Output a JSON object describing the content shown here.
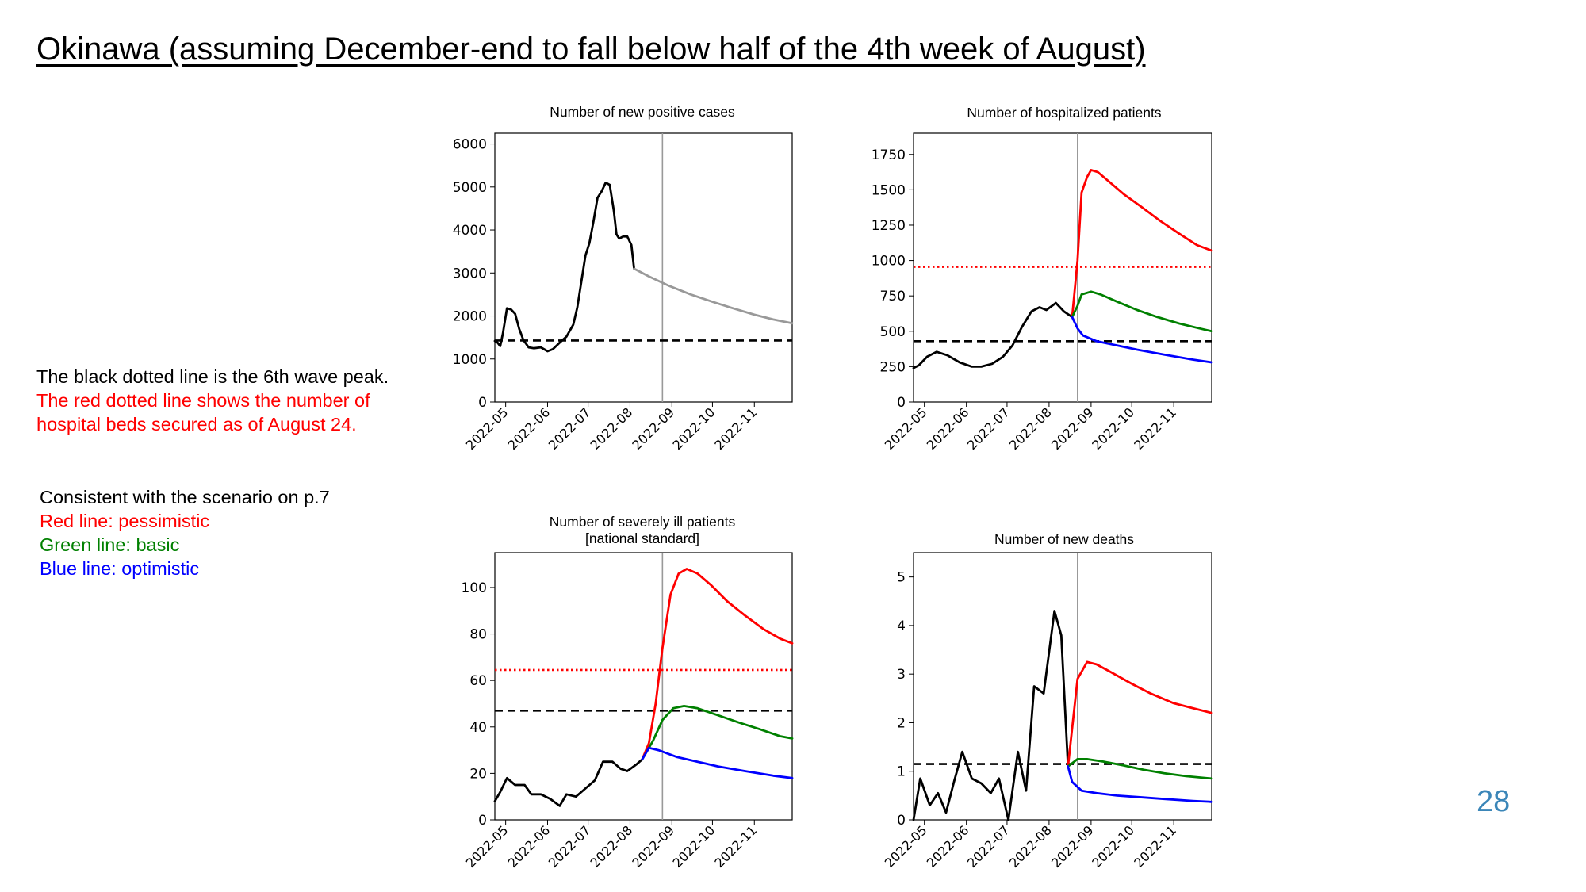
{
  "slide": {
    "title": "Okinawa (assuming December-end to fall below half of the 4th week of August)",
    "page_number": "28",
    "notes": [
      {
        "text": "The black dotted line is the 6th wave peak.",
        "color": "#000000"
      },
      {
        "text": "The red dotted line shows the number of",
        "color": "#ff0000"
      },
      {
        "text": "hospital beds secured as of August 24.",
        "color": "#ff0000"
      }
    ],
    "scenario_heading": "Consistent with the scenario on p.7",
    "legend": [
      {
        "text": "Red line: pessimistic",
        "color": "#ff0000"
      },
      {
        "text": "Green line: basic",
        "color": "#008000"
      },
      {
        "text": "Blue line: optimistic",
        "color": "#0000ff"
      }
    ]
  },
  "chart_data": [
    {
      "type": "line",
      "title": "Number of new positive cases",
      "x_ticks": [
        "2022-05",
        "2022-06",
        "2022-07",
        "2022-08",
        "2022-09",
        "2022-10",
        "2022-11"
      ],
      "xlim": [
        "2022-04-23",
        "2022-11-29"
      ],
      "ylim": [
        0,
        6250
      ],
      "yticks": [
        0,
        1000,
        2000,
        3000,
        4000,
        5000,
        6000
      ],
      "vline": "2022-08-25",
      "hlines": [
        {
          "label": "6th wave peak",
          "value": 1430,
          "color": "#000000",
          "style": "dashed"
        }
      ],
      "series": [
        {
          "color": "#000000",
          "points": [
            [
              "2022-04-23",
              1420
            ],
            [
              "2022-04-25",
              1380
            ],
            [
              "2022-04-27",
              1300
            ],
            [
              "2022-04-29",
              1600
            ],
            [
              "2022-05-02",
              2180
            ],
            [
              "2022-05-05",
              2150
            ],
            [
              "2022-05-08",
              2050
            ],
            [
              "2022-05-11",
              1700
            ],
            [
              "2022-05-14",
              1450
            ],
            [
              "2022-05-18",
              1270
            ],
            [
              "2022-05-22",
              1250
            ],
            [
              "2022-05-27",
              1270
            ],
            [
              "2022-06-01",
              1180
            ],
            [
              "2022-06-05",
              1230
            ],
            [
              "2022-06-10",
              1380
            ],
            [
              "2022-06-15",
              1520
            ],
            [
              "2022-06-20",
              1800
            ],
            [
              "2022-06-23",
              2200
            ],
            [
              "2022-06-26",
              2800
            ],
            [
              "2022-06-29",
              3400
            ],
            [
              "2022-07-02",
              3700
            ],
            [
              "2022-07-05",
              4200
            ],
            [
              "2022-07-08",
              4750
            ],
            [
              "2022-07-11",
              4900
            ],
            [
              "2022-07-14",
              5100
            ],
            [
              "2022-07-17",
              5050
            ],
            [
              "2022-07-20",
              4450
            ],
            [
              "2022-07-22",
              3900
            ],
            [
              "2022-07-24",
              3800
            ],
            [
              "2022-07-27",
              3850
            ],
            [
              "2022-07-30",
              3850
            ],
            [
              "2022-08-02",
              3650
            ],
            [
              "2022-08-04",
              3100
            ]
          ]
        },
        {
          "color": "#999999",
          "points": [
            [
              "2022-08-04",
              3100
            ],
            [
              "2022-08-15",
              2920
            ],
            [
              "2022-08-30",
              2700
            ],
            [
              "2022-09-15",
              2500
            ],
            [
              "2022-10-01",
              2330
            ],
            [
              "2022-10-15",
              2190
            ],
            [
              "2022-11-01",
              2030
            ],
            [
              "2022-11-15",
              1920
            ],
            [
              "2022-11-29",
              1830
            ]
          ]
        }
      ]
    },
    {
      "type": "line",
      "title": "Number of hospitalized patients",
      "x_ticks": [
        "2022-05",
        "2022-06",
        "2022-07",
        "2022-08",
        "2022-09",
        "2022-10",
        "2022-11"
      ],
      "xlim": [
        "2022-04-23",
        "2022-11-29"
      ],
      "ylim": [
        0,
        1900
      ],
      "yticks": [
        0,
        250,
        500,
        750,
        1000,
        1250,
        1500,
        1750
      ],
      "vline": "2022-08-22",
      "hlines": [
        {
          "label": "6th wave peak",
          "value": 430,
          "color": "#000000",
          "style": "dashed"
        },
        {
          "label": "beds secured as of August 24",
          "value": 955,
          "color": "#ff0000",
          "style": "dotted"
        }
      ],
      "series": [
        {
          "color": "#000000",
          "points": [
            [
              "2022-04-23",
              240
            ],
            [
              "2022-04-27",
              260
            ],
            [
              "2022-05-03",
              320
            ],
            [
              "2022-05-10",
              355
            ],
            [
              "2022-05-18",
              330
            ],
            [
              "2022-05-27",
              280
            ],
            [
              "2022-06-05",
              250
            ],
            [
              "2022-06-12",
              250
            ],
            [
              "2022-06-20",
              270
            ],
            [
              "2022-06-28",
              320
            ],
            [
              "2022-07-05",
              400
            ],
            [
              "2022-07-12",
              530
            ],
            [
              "2022-07-19",
              640
            ],
            [
              "2022-07-25",
              670
            ],
            [
              "2022-07-30",
              650
            ],
            [
              "2022-08-06",
              700
            ],
            [
              "2022-08-12",
              640
            ],
            [
              "2022-08-18",
              600
            ]
          ]
        },
        {
          "color": "#ff0000",
          "points": [
            [
              "2022-08-18",
              600
            ],
            [
              "2022-08-22",
              1000
            ],
            [
              "2022-08-25",
              1480
            ],
            [
              "2022-08-29",
              1590
            ],
            [
              "2022-09-01",
              1640
            ],
            [
              "2022-09-06",
              1625
            ],
            [
              "2022-09-14",
              1560
            ],
            [
              "2022-09-25",
              1470
            ],
            [
              "2022-10-08",
              1380
            ],
            [
              "2022-10-22",
              1280
            ],
            [
              "2022-11-05",
              1190
            ],
            [
              "2022-11-18",
              1110
            ],
            [
              "2022-11-29",
              1070
            ]
          ]
        },
        {
          "color": "#008000",
          "points": [
            [
              "2022-08-18",
              600
            ],
            [
              "2022-08-22",
              680
            ],
            [
              "2022-08-25",
              760
            ],
            [
              "2022-09-01",
              780
            ],
            [
              "2022-09-08",
              760
            ],
            [
              "2022-09-20",
              710
            ],
            [
              "2022-10-05",
              650
            ],
            [
              "2022-10-20",
              600
            ],
            [
              "2022-11-05",
              555
            ],
            [
              "2022-11-20",
              520
            ],
            [
              "2022-11-29",
              500
            ]
          ]
        },
        {
          "color": "#0000ff",
          "points": [
            [
              "2022-08-18",
              600
            ],
            [
              "2022-08-22",
              520
            ],
            [
              "2022-08-26",
              470
            ],
            [
              "2022-09-05",
              430
            ],
            [
              "2022-09-20",
              400
            ],
            [
              "2022-10-05",
              370
            ],
            [
              "2022-10-25",
              335
            ],
            [
              "2022-11-15",
              300
            ],
            [
              "2022-11-29",
              280
            ]
          ]
        }
      ]
    },
    {
      "type": "line",
      "title": "Number of severely ill patients",
      "subtitle": "[national standard]",
      "x_ticks": [
        "2022-05",
        "2022-06",
        "2022-07",
        "2022-08",
        "2022-09",
        "2022-10",
        "2022-11"
      ],
      "xlim": [
        "2022-04-23",
        "2022-11-29"
      ],
      "ylim": [
        0,
        115
      ],
      "yticks": [
        0,
        20,
        40,
        60,
        80,
        100
      ],
      "vline": "2022-08-25",
      "hlines": [
        {
          "label": "6th wave peak",
          "value": 47,
          "color": "#000000",
          "style": "dashed"
        },
        {
          "label": "beds secured as of August 24",
          "value": 64.5,
          "color": "#ff0000",
          "style": "dotted"
        }
      ],
      "series": [
        {
          "color": "#000000",
          "points": [
            [
              "2022-04-23",
              8
            ],
            [
              "2022-04-27",
              12
            ],
            [
              "2022-05-02",
              18
            ],
            [
              "2022-05-08",
              15
            ],
            [
              "2022-05-15",
              15
            ],
            [
              "2022-05-20",
              11
            ],
            [
              "2022-05-27",
              11
            ],
            [
              "2022-06-03",
              9
            ],
            [
              "2022-06-10",
              6
            ],
            [
              "2022-06-15",
              11
            ],
            [
              "2022-06-22",
              10
            ],
            [
              "2022-06-30",
              14
            ],
            [
              "2022-07-06",
              17
            ],
            [
              "2022-07-12",
              25
            ],
            [
              "2022-07-19",
              25
            ],
            [
              "2022-07-25",
              22
            ],
            [
              "2022-07-30",
              21
            ],
            [
              "2022-08-06",
              24
            ],
            [
              "2022-08-10",
              26
            ]
          ]
        },
        {
          "color": "#ff0000",
          "points": [
            [
              "2022-08-10",
              26
            ],
            [
              "2022-08-15",
              33
            ],
            [
              "2022-08-20",
              50
            ],
            [
              "2022-08-25",
              74
            ],
            [
              "2022-08-31",
              97
            ],
            [
              "2022-09-06",
              106
            ],
            [
              "2022-09-12",
              108
            ],
            [
              "2022-09-20",
              106
            ],
            [
              "2022-09-30",
              101
            ],
            [
              "2022-10-12",
              94
            ],
            [
              "2022-10-25",
              88
            ],
            [
              "2022-11-08",
              82
            ],
            [
              "2022-11-20",
              78
            ],
            [
              "2022-11-29",
              76
            ]
          ]
        },
        {
          "color": "#008000",
          "points": [
            [
              "2022-08-10",
              26
            ],
            [
              "2022-08-18",
              34
            ],
            [
              "2022-08-25",
              43
            ],
            [
              "2022-09-02",
              48
            ],
            [
              "2022-09-10",
              49
            ],
            [
              "2022-09-20",
              48
            ],
            [
              "2022-10-05",
              45
            ],
            [
              "2022-10-20",
              42
            ],
            [
              "2022-11-05",
              39
            ],
            [
              "2022-11-20",
              36
            ],
            [
              "2022-11-29",
              35
            ]
          ]
        },
        {
          "color": "#0000ff",
          "points": [
            [
              "2022-08-10",
              26
            ],
            [
              "2022-08-15",
              31
            ],
            [
              "2022-08-22",
              30
            ],
            [
              "2022-09-05",
              27
            ],
            [
              "2022-09-20",
              25
            ],
            [
              "2022-10-05",
              23
            ],
            [
              "2022-10-25",
              21
            ],
            [
              "2022-11-15",
              19
            ],
            [
              "2022-11-29",
              18
            ]
          ]
        }
      ]
    },
    {
      "type": "line",
      "title": "Number of new deaths",
      "x_ticks": [
        "2022-05",
        "2022-06",
        "2022-07",
        "2022-08",
        "2022-09",
        "2022-10",
        "2022-11"
      ],
      "xlim": [
        "2022-04-23",
        "2022-11-29"
      ],
      "ylim": [
        0,
        5.5
      ],
      "yticks": [
        0,
        1,
        2,
        3,
        4,
        5
      ],
      "vline": "2022-08-22",
      "hlines": [
        {
          "label": "6th wave peak",
          "value": 1.15,
          "color": "#000000",
          "style": "dashed"
        }
      ],
      "series": [
        {
          "color": "#000000",
          "points": [
            [
              "2022-04-23",
              0.0
            ],
            [
              "2022-04-28",
              0.85
            ],
            [
              "2022-05-05",
              0.3
            ],
            [
              "2022-05-11",
              0.55
            ],
            [
              "2022-05-17",
              0.15
            ],
            [
              "2022-05-23",
              0.8
            ],
            [
              "2022-05-29",
              1.4
            ],
            [
              "2022-06-05",
              0.85
            ],
            [
              "2022-06-12",
              0.75
            ],
            [
              "2022-06-19",
              0.55
            ],
            [
              "2022-06-25",
              0.85
            ],
            [
              "2022-07-02",
              0.0
            ],
            [
              "2022-07-09",
              1.4
            ],
            [
              "2022-07-15",
              0.6
            ],
            [
              "2022-07-21",
              2.75
            ],
            [
              "2022-07-28",
              2.6
            ],
            [
              "2022-08-05",
              4.3
            ],
            [
              "2022-08-10",
              3.8
            ],
            [
              "2022-08-15",
              1.1
            ]
          ]
        },
        {
          "color": "#ff0000",
          "points": [
            [
              "2022-08-15",
              1.1
            ],
            [
              "2022-08-22",
              2.9
            ],
            [
              "2022-08-29",
              3.25
            ],
            [
              "2022-09-05",
              3.2
            ],
            [
              "2022-09-15",
              3.05
            ],
            [
              "2022-10-01",
              2.8
            ],
            [
              "2022-10-15",
              2.6
            ],
            [
              "2022-11-01",
              2.4
            ],
            [
              "2022-11-15",
              2.3
            ],
            [
              "2022-11-29",
              2.2
            ]
          ]
        },
        {
          "color": "#008000",
          "points": [
            [
              "2022-08-15",
              1.1
            ],
            [
              "2022-08-22",
              1.25
            ],
            [
              "2022-08-29",
              1.25
            ],
            [
              "2022-09-10",
              1.2
            ],
            [
              "2022-09-25",
              1.12
            ],
            [
              "2022-10-10",
              1.03
            ],
            [
              "2022-10-25",
              0.96
            ],
            [
              "2022-11-10",
              0.9
            ],
            [
              "2022-11-29",
              0.85
            ]
          ]
        },
        {
          "color": "#0000ff",
          "points": [
            [
              "2022-08-15",
              1.1
            ],
            [
              "2022-08-18",
              0.78
            ],
            [
              "2022-08-25",
              0.6
            ],
            [
              "2022-09-05",
              0.55
            ],
            [
              "2022-09-20",
              0.5
            ],
            [
              "2022-10-05",
              0.47
            ],
            [
              "2022-10-25",
              0.43
            ],
            [
              "2022-11-15",
              0.39
            ],
            [
              "2022-11-29",
              0.37
            ]
          ]
        }
      ]
    }
  ]
}
